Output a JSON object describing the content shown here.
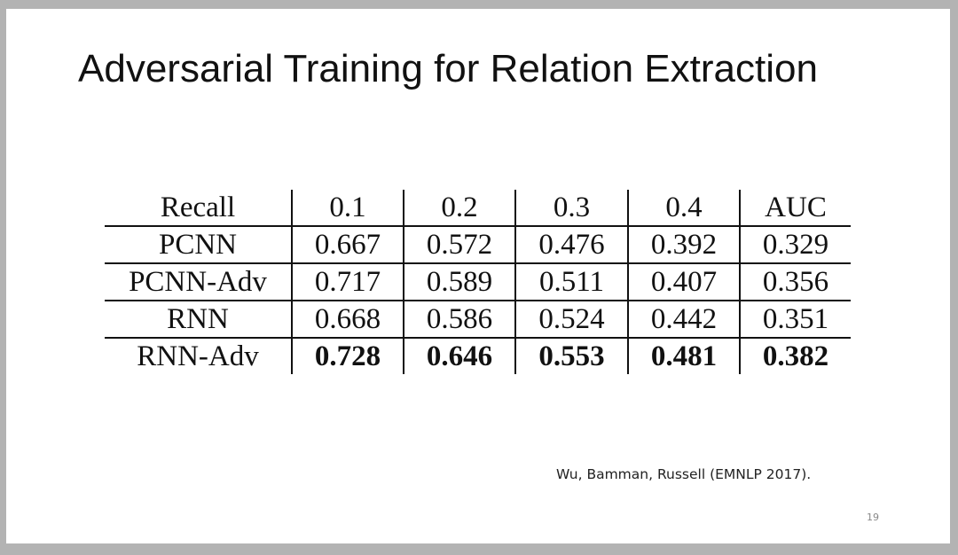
{
  "slide": {
    "title": "Adversarial Training for Relation Extraction",
    "citation": "Wu, Bamman, Russell (EMNLP 2017).",
    "page_number": "19"
  },
  "table": {
    "headers": [
      "Recall",
      "0.1",
      "0.2",
      "0.3",
      "0.4",
      "AUC"
    ],
    "rows": [
      {
        "label": "PCNN",
        "values": [
          "0.667",
          "0.572",
          "0.476",
          "0.392",
          "0.329"
        ],
        "bold": false
      },
      {
        "label": "PCNN-Adv",
        "values": [
          "0.717",
          "0.589",
          "0.511",
          "0.407",
          "0.356"
        ],
        "bold": false
      },
      {
        "label": "RNN",
        "values": [
          "0.668",
          "0.586",
          "0.524",
          "0.442",
          "0.351"
        ],
        "bold": false
      },
      {
        "label": "RNN-Adv",
        "values": [
          "0.728",
          "0.646",
          "0.553",
          "0.481",
          "0.382"
        ],
        "bold": true
      }
    ]
  },
  "chart_data": {
    "type": "table",
    "columns": [
      "Recall",
      "0.1",
      "0.2",
      "0.3",
      "0.4",
      "AUC"
    ],
    "rows": [
      [
        "PCNN",
        0.667,
        0.572,
        0.476,
        0.392,
        0.329
      ],
      [
        "PCNN-Adv",
        0.717,
        0.589,
        0.511,
        0.407,
        0.356
      ],
      [
        "RNN",
        0.668,
        0.586,
        0.524,
        0.442,
        0.351
      ],
      [
        "RNN-Adv",
        0.728,
        0.646,
        0.553,
        0.481,
        0.382
      ]
    ]
  }
}
